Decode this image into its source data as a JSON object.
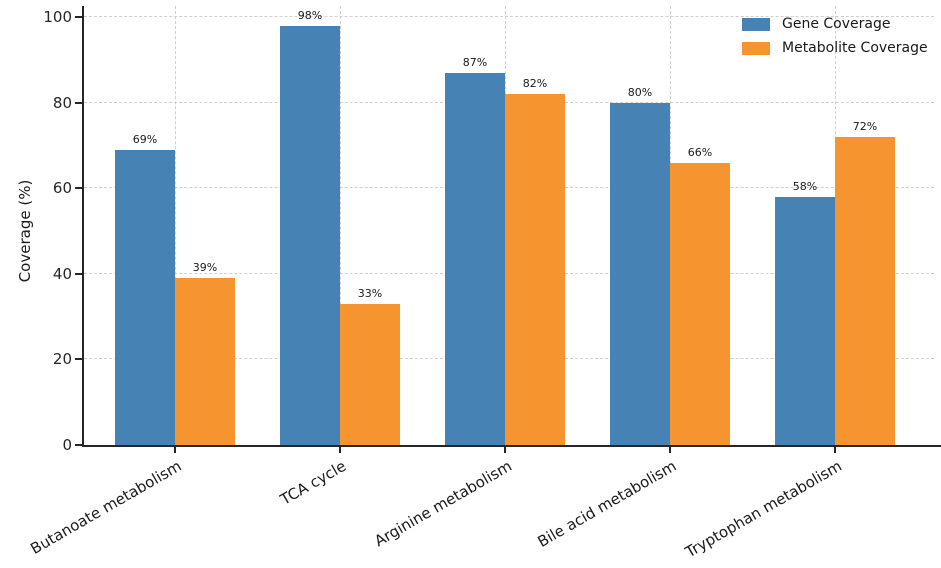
{
  "chart_data": {
    "type": "bar",
    "title": "",
    "categories": [
      "Butanoate metabolism",
      "TCA cycle",
      "Arginine metabolism",
      "Bile acid metabolism",
      "Tryptophan metabolism"
    ],
    "series": [
      {
        "name": "Gene Coverage",
        "color": "#4682B4",
        "values": [
          69,
          98,
          87,
          80,
          58
        ]
      },
      {
        "name": "Metabolite Coverage",
        "color": "#F6942F",
        "values": [
          39,
          33,
          82,
          66,
          72
        ]
      }
    ],
    "value_label_format": "{v}%",
    "xlabel": "",
    "ylabel": "Coverage (%)",
    "yticks": [
      0,
      20,
      40,
      60,
      80,
      100
    ],
    "ylim": [
      0,
      102.6
    ],
    "grid": {
      "horizontal": true,
      "vertical": true,
      "style": "dashed"
    },
    "legend_position": "upper right",
    "colors": {
      "axis": "#262626",
      "grid": "#cfcfcf",
      "text": "#1a1a1a",
      "background": "#ffffff"
    }
  }
}
